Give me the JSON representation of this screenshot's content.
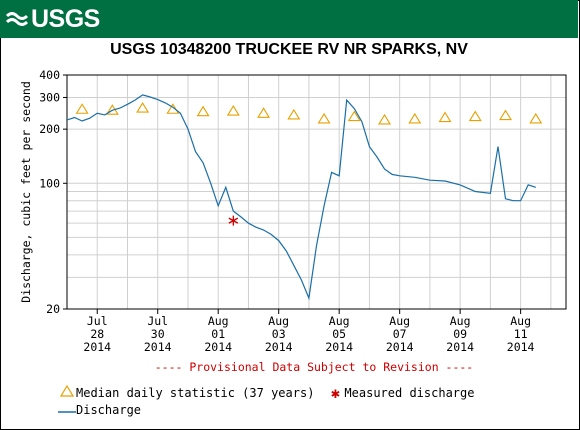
{
  "header": {
    "logo_text": "USGS",
    "brand_color": "#006f41"
  },
  "chart_data": {
    "type": "line",
    "title": "USGS 10348200 TRUCKEE RV NR SPARKS, NV",
    "ylabel": "Discharge, cubic feet per second",
    "xlabel": "",
    "yscale": "log",
    "ylim": [
      20,
      400
    ],
    "ytick_labels": [
      "20",
      "100",
      "200",
      "300",
      "400"
    ],
    "xlim": [
      "2014-07-27T00:00",
      "2014-08-12T12:00"
    ],
    "xticks": [
      {
        "month": "Jul",
        "day": "28",
        "year": "2014",
        "date": "2014-07-28"
      },
      {
        "month": "Jul",
        "day": "30",
        "year": "2014",
        "date": "2014-07-30"
      },
      {
        "month": "Aug",
        "day": "01",
        "year": "2014",
        "date": "2014-08-01"
      },
      {
        "month": "Aug",
        "day": "03",
        "year": "2014",
        "date": "2014-08-03"
      },
      {
        "month": "Aug",
        "day": "05",
        "year": "2014",
        "date": "2014-08-05"
      },
      {
        "month": "Aug",
        "day": "07",
        "year": "2014",
        "date": "2014-08-07"
      },
      {
        "month": "Aug",
        "day": "09",
        "year": "2014",
        "date": "2014-08-09"
      },
      {
        "month": "Aug",
        "day": "11",
        "year": "2014",
        "date": "2014-08-11"
      }
    ],
    "annotation": "---- Provisional Data Subject to Revision ----",
    "annotation_color": "#cc0000",
    "series": [
      {
        "name": "Discharge",
        "color": "#1a6fa8",
        "points": [
          [
            "2014-07-27T00:00",
            225
          ],
          [
            "2014-07-27T06:00",
            232
          ],
          [
            "2014-07-27T12:00",
            222
          ],
          [
            "2014-07-27T18:00",
            230
          ],
          [
            "2014-07-28T00:00",
            245
          ],
          [
            "2014-07-28T06:00",
            240
          ],
          [
            "2014-07-28T12:00",
            255
          ],
          [
            "2014-07-28T18:00",
            262
          ],
          [
            "2014-07-29T00:00",
            275
          ],
          [
            "2014-07-29T06:00",
            290
          ],
          [
            "2014-07-29T12:00",
            310
          ],
          [
            "2014-07-29T18:00",
            302
          ],
          [
            "2014-07-30T00:00",
            292
          ],
          [
            "2014-07-30T06:00",
            280
          ],
          [
            "2014-07-30T12:00",
            265
          ],
          [
            "2014-07-30T18:00",
            245
          ],
          [
            "2014-07-31T00:00",
            200
          ],
          [
            "2014-07-31T06:00",
            150
          ],
          [
            "2014-07-31T12:00",
            130
          ],
          [
            "2014-07-31T18:00",
            100
          ],
          [
            "2014-08-01T00:00",
            75
          ],
          [
            "2014-08-01T06:00",
            95
          ],
          [
            "2014-08-01T12:00",
            70
          ],
          [
            "2014-08-01T18:00",
            65
          ],
          [
            "2014-08-02T00:00",
            60
          ],
          [
            "2014-08-02T06:00",
            57
          ],
          [
            "2014-08-02T12:00",
            55
          ],
          [
            "2014-08-02T18:00",
            52
          ],
          [
            "2014-08-03T00:00",
            48
          ],
          [
            "2014-08-03T06:00",
            42
          ],
          [
            "2014-08-03T12:00",
            35
          ],
          [
            "2014-08-03T18:00",
            29
          ],
          [
            "2014-08-04T00:00",
            23
          ],
          [
            "2014-08-04T06:00",
            45
          ],
          [
            "2014-08-04T12:00",
            75
          ],
          [
            "2014-08-04T18:00",
            115
          ],
          [
            "2014-08-05T00:00",
            110
          ],
          [
            "2014-08-05T06:00",
            290
          ],
          [
            "2014-08-05T12:00",
            260
          ],
          [
            "2014-08-05T18:00",
            220
          ],
          [
            "2014-08-06T00:00",
            160
          ],
          [
            "2014-08-06T06:00",
            140
          ],
          [
            "2014-08-06T12:00",
            120
          ],
          [
            "2014-08-06T18:00",
            112
          ],
          [
            "2014-08-07T00:00",
            110
          ],
          [
            "2014-08-07T12:00",
            108
          ],
          [
            "2014-08-08T00:00",
            104
          ],
          [
            "2014-08-08T12:00",
            103
          ],
          [
            "2014-08-09T00:00",
            98
          ],
          [
            "2014-08-09T12:00",
            90
          ],
          [
            "2014-08-10T00:00",
            88
          ],
          [
            "2014-08-10T06:00",
            160
          ],
          [
            "2014-08-10T12:00",
            82
          ],
          [
            "2014-08-10T18:00",
            80
          ],
          [
            "2014-08-11T00:00",
            80
          ],
          [
            "2014-08-11T06:00",
            98
          ],
          [
            "2014-08-11T12:00",
            95
          ]
        ]
      },
      {
        "name": "Median daily statistic (37 years)",
        "color": "#e8a000",
        "points": [
          [
            "2014-07-27T12:00",
            258
          ],
          [
            "2014-07-28T12:00",
            255
          ],
          [
            "2014-07-29T12:00",
            262
          ],
          [
            "2014-07-30T12:00",
            258
          ],
          [
            "2014-07-31T12:00",
            250
          ],
          [
            "2014-08-01T12:00",
            252
          ],
          [
            "2014-08-02T12:00",
            245
          ],
          [
            "2014-08-03T12:00",
            240
          ],
          [
            "2014-08-04T12:00",
            228
          ],
          [
            "2014-08-05T12:00",
            235
          ],
          [
            "2014-08-06T12:00",
            225
          ],
          [
            "2014-08-07T12:00",
            228
          ],
          [
            "2014-08-08T12:00",
            232
          ],
          [
            "2014-08-09T12:00",
            235
          ],
          [
            "2014-08-10T12:00",
            238
          ],
          [
            "2014-08-11T12:00",
            228
          ]
        ]
      },
      {
        "name": "Measured discharge",
        "color": "#cc0000",
        "points": [
          [
            "2014-08-01T12:00",
            62
          ]
        ]
      }
    ],
    "legend": {
      "position": "bottom-left",
      "median_label": "Median daily statistic (37 years)",
      "measured_label": "Measured discharge",
      "discharge_label": "Discharge"
    },
    "grid": true
  }
}
